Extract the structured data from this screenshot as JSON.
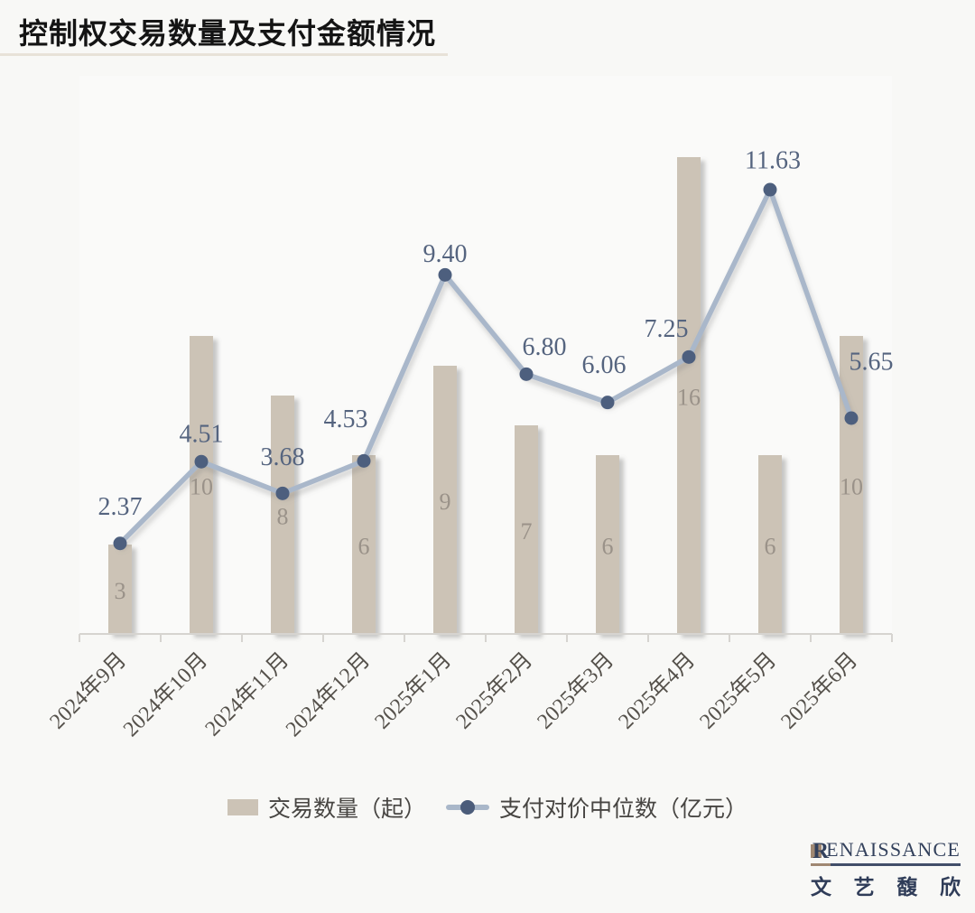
{
  "title": "控制权交易数量及支付金额情况",
  "legend": {
    "bar_label": "交易数量（起）",
    "line_label": "支付对价中位数（亿元）"
  },
  "chart_data": {
    "type": "bar+line combo",
    "categories": [
      "2024年9月",
      "2024年10月",
      "2024年11月",
      "2024年12月",
      "2025年1月",
      "2025年2月",
      "2025年3月",
      "2025年4月",
      "2025年5月",
      "2025年6月"
    ],
    "series": [
      {
        "name": "交易数量（起）",
        "type": "bar",
        "values": [
          3,
          10,
          8,
          6,
          9,
          7,
          6,
          16,
          6,
          10
        ]
      },
      {
        "name": "支付对价中位数（亿元）",
        "type": "line",
        "values": [
          2.37,
          4.51,
          3.68,
          4.53,
          9.4,
          6.8,
          6.06,
          7.25,
          11.63,
          5.65
        ]
      }
    ],
    "title": "控制权交易数量及支付金额情况",
    "xlabel": "",
    "ylabel": "",
    "y_axis_visible": false,
    "grid": false,
    "legend_position": "bottom",
    "bar_value_labels": "inside-center",
    "line_value_labels": "above-point, 2 decimals"
  },
  "colors": {
    "background": "#f8f8f6",
    "plot_background": "#fafaf9",
    "bar": "#ccc3b6",
    "bar_label": "#9a9289",
    "line": "#a9b7ca",
    "marker": "#4d5f7e",
    "data_label": "#55647f",
    "axis": "#d6d4d0",
    "x_label": "#55514b",
    "title_text": "#141414",
    "divider": "#e8e2d8",
    "legend_text": "#474542",
    "logo_navy": "#33415c",
    "logo_tan": "#a08872"
  },
  "logo": {
    "initial": "R",
    "rest": "ENAISSANCE",
    "cn_chars": [
      "文",
      "艺",
      "馥",
      "欣"
    ]
  }
}
